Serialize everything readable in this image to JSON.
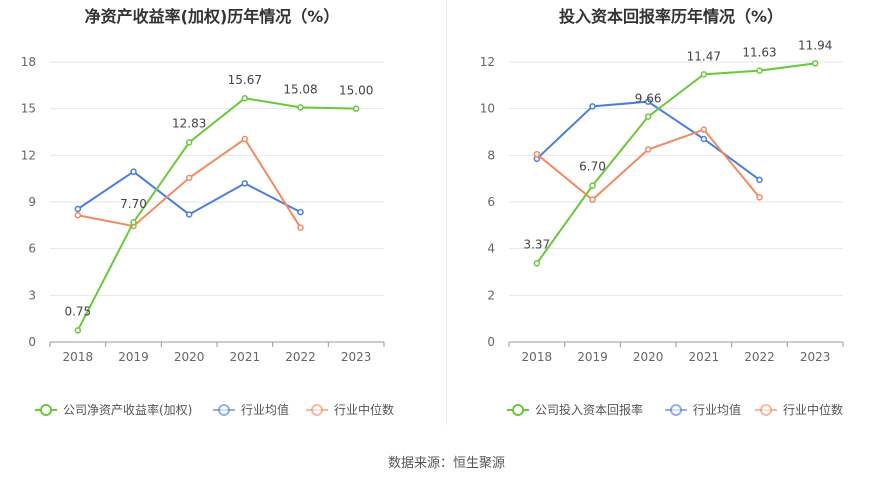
{
  "source_text": "数据来源：恒生聚源",
  "colors": {
    "company": "#6ac83b",
    "avg": "#4a7fdc",
    "median": "#f28a62",
    "grid": "#e6e6e6",
    "axis": "#999999",
    "tick_text": "#666666",
    "title": "#333333"
  },
  "chart_data": [
    {
      "type": "line",
      "title": "净资产收益率(加权)历年情况（%）",
      "categories": [
        "2018",
        "2019",
        "2020",
        "2021",
        "2022",
        "2023"
      ],
      "ylim": [
        0,
        18
      ],
      "yticks": [
        0,
        3,
        6,
        9,
        12,
        15,
        18
      ],
      "grid": true,
      "legend_position": "bottom",
      "series": [
        {
          "name": "公司净资产收益率(加权)",
          "role": "company",
          "values": [
            0.75,
            7.7,
            12.83,
            15.67,
            15.08,
            15.0
          ],
          "labels": [
            "0.75",
            "7.70",
            "12.83",
            "15.67",
            "15.08",
            "15.00"
          ]
        },
        {
          "name": "行业均值",
          "role": "avg",
          "values": [
            8.55,
            10.95,
            8.2,
            10.2,
            8.35,
            null
          ]
        },
        {
          "name": "行业中位数",
          "role": "median",
          "values": [
            8.15,
            7.45,
            10.55,
            13.05,
            7.35,
            null
          ]
        }
      ]
    },
    {
      "type": "line",
      "title": "投入资本回报率历年情况（%）",
      "categories": [
        "2018",
        "2019",
        "2020",
        "2021",
        "2022",
        "2023"
      ],
      "ylim": [
        0,
        12
      ],
      "yticks": [
        0,
        2,
        4,
        6,
        8,
        10,
        12
      ],
      "grid": true,
      "legend_position": "bottom",
      "series": [
        {
          "name": "公司投入资本回报率",
          "role": "company",
          "values": [
            3.37,
            6.7,
            9.66,
            11.47,
            11.63,
            11.94
          ],
          "labels": [
            "3.37",
            "6.70",
            "9.66",
            "11.47",
            "11.63",
            "11.94"
          ]
        },
        {
          "name": "行业均值",
          "role": "avg",
          "values": [
            7.85,
            10.1,
            10.3,
            8.7,
            6.95,
            null
          ]
        },
        {
          "name": "行业中位数",
          "role": "median",
          "values": [
            8.05,
            6.1,
            8.25,
            9.1,
            6.2,
            null
          ]
        }
      ]
    }
  ]
}
